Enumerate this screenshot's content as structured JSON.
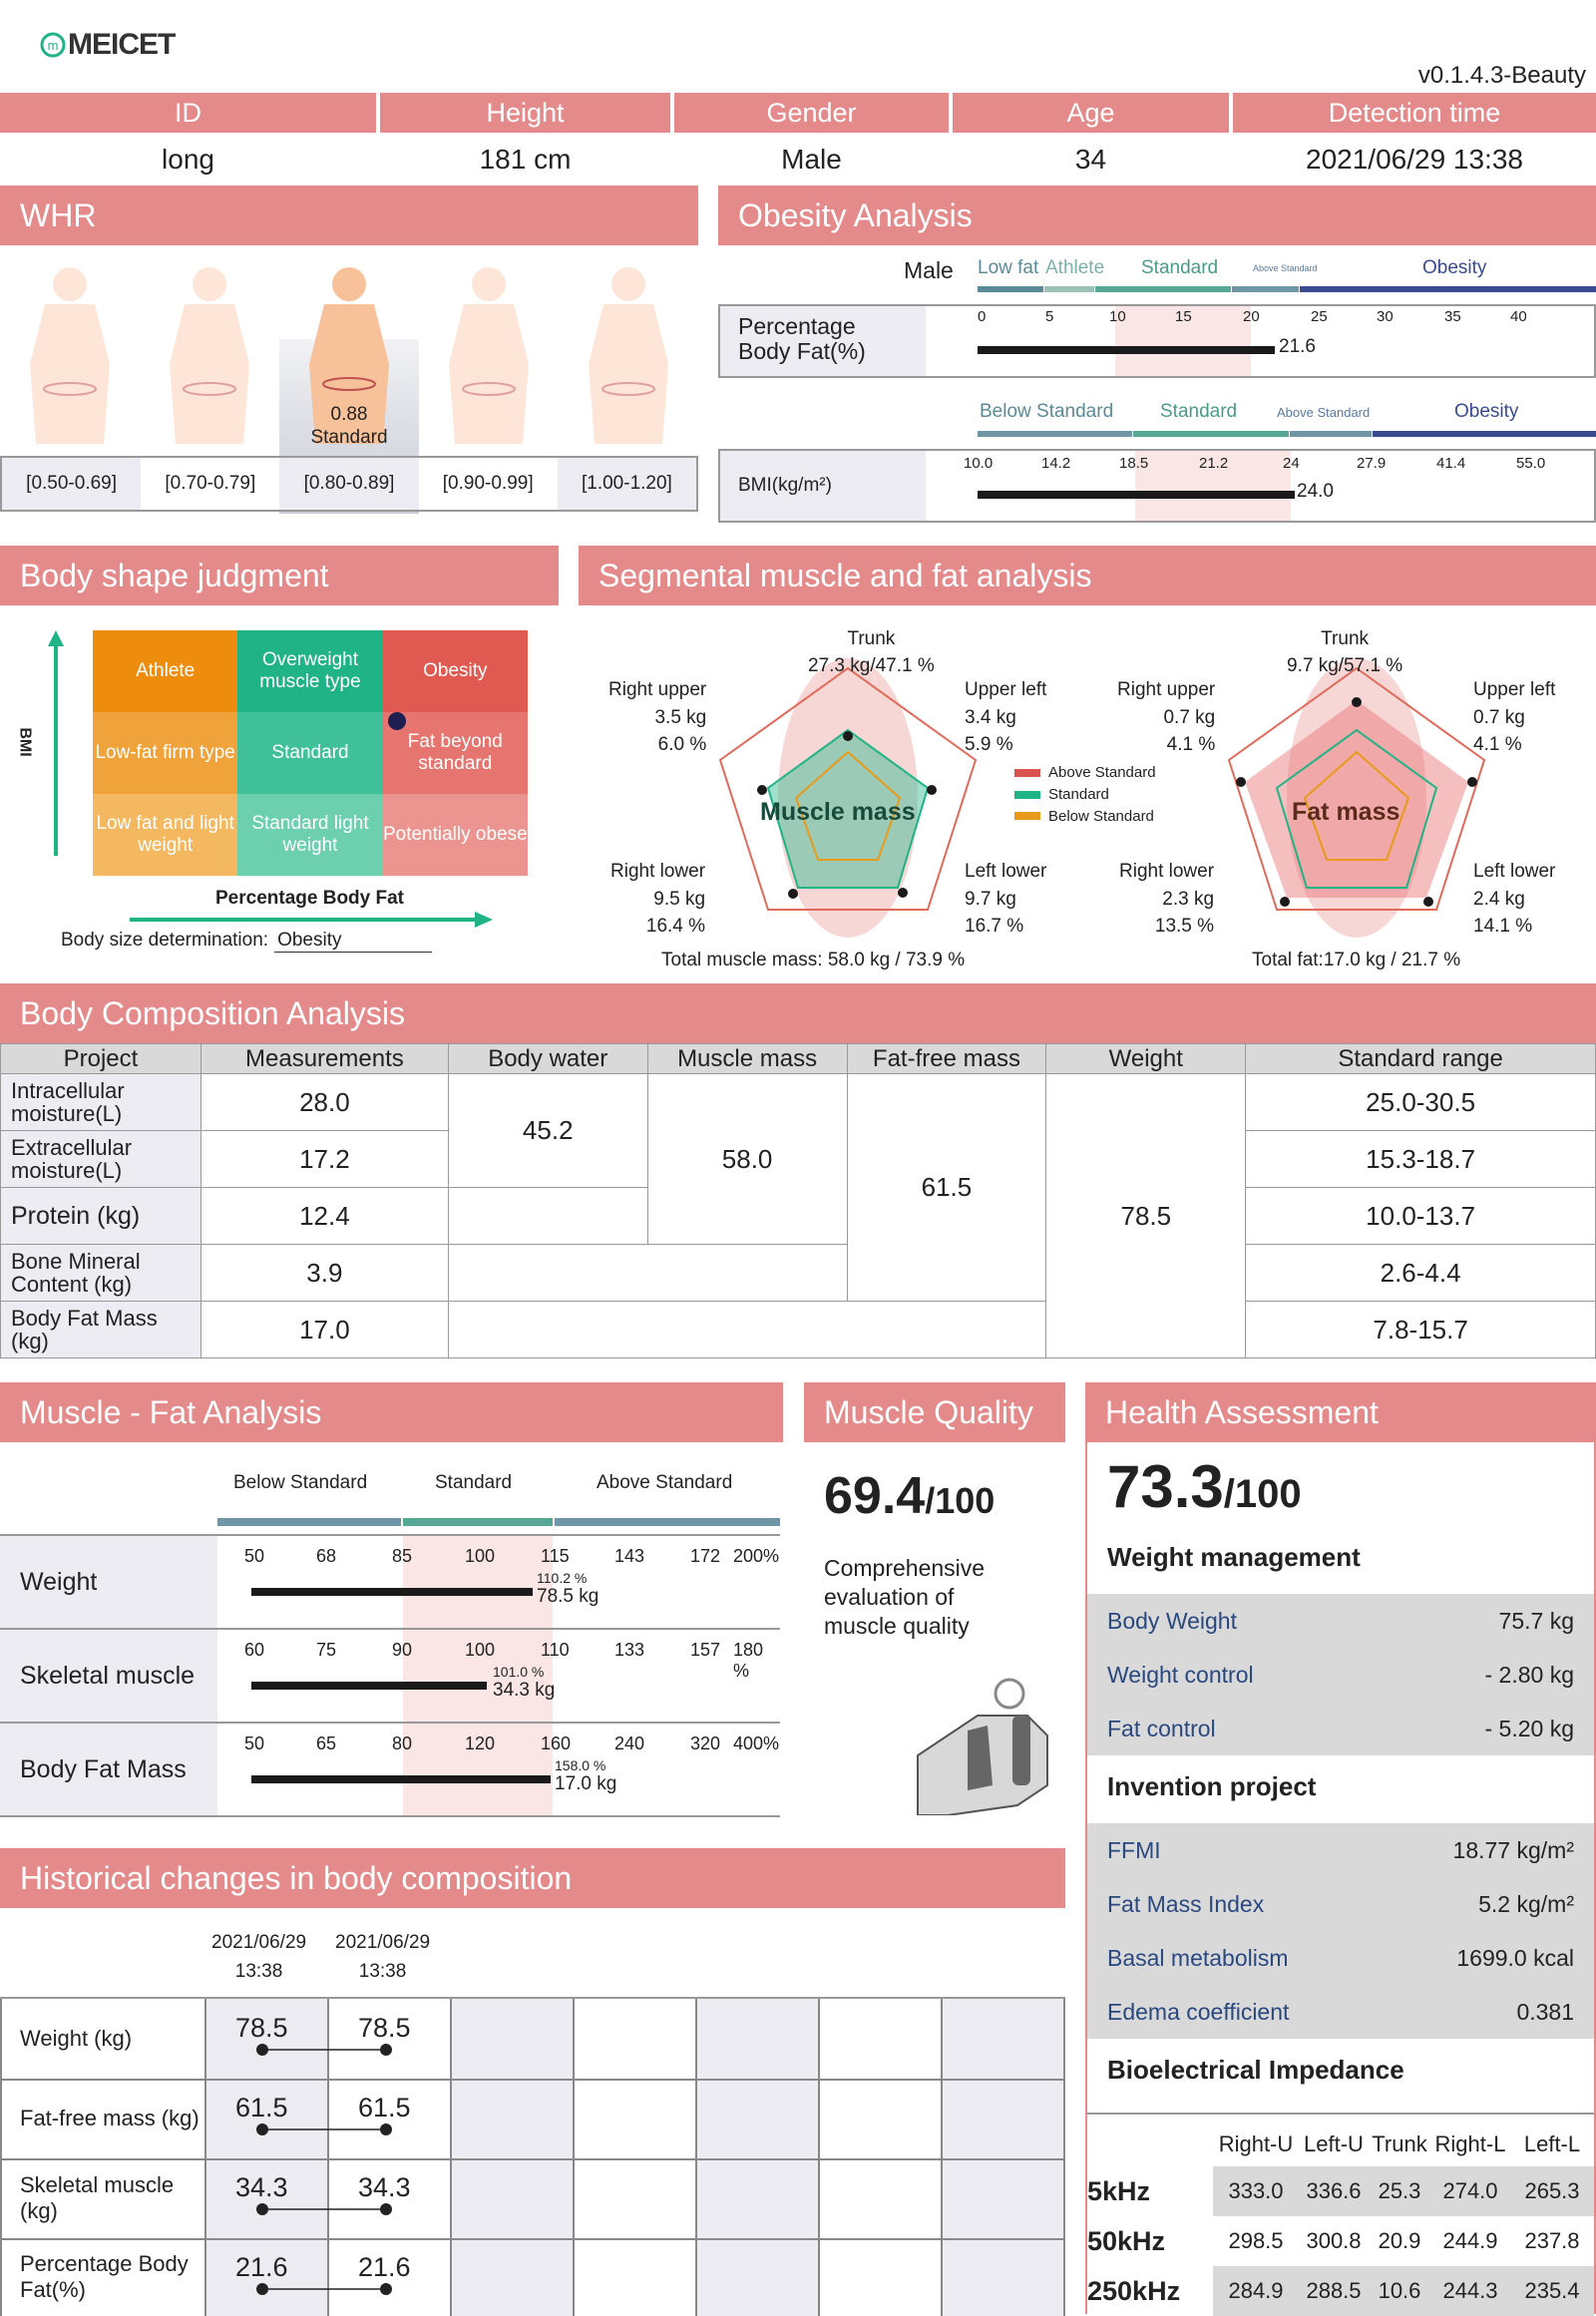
{
  "brand": "MEICET",
  "version": "v0.1.4.3-Beauty",
  "info": {
    "headers": [
      "ID",
      "Height",
      "Gender",
      "Age",
      "Detection time"
    ],
    "values": [
      "long",
      "181 cm",
      "Male",
      "34",
      "2021/06/29 13:38"
    ]
  },
  "whr": {
    "title": "WHR",
    "value": "0.88",
    "status": "Standard",
    "ranges": [
      "[0.50-0.69]",
      "[0.70-0.79]",
      "[0.80-0.89]",
      "[0.90-0.99]",
      "[1.00-1.20]"
    ],
    "selected": 2
  },
  "obesity": {
    "title": "Obesity Analysis",
    "gender": "Male",
    "pbf": {
      "label": "Percentage Body Fat(%)",
      "cats": [
        "Low fat",
        "Athlete",
        "Standard",
        "Above Standard",
        "Obesity"
      ],
      "ticks": [
        "0",
        "5",
        "10",
        "15",
        "20",
        "25",
        "30",
        "35",
        "40"
      ],
      "value": "21.6"
    },
    "bmi": {
      "label": "BMI(kg/m²)",
      "cats": [
        "Below Standard",
        "Standard",
        "Above Standard",
        "Obesity"
      ],
      "ticks": [
        "10.0",
        "14.2",
        "18.5",
        "21.2",
        "24",
        "27.9",
        "41.4",
        "55.0"
      ],
      "value": "24.0"
    }
  },
  "body_shape": {
    "title": "Body shape judgment",
    "y_label": "BMI",
    "x_label": "Percentage Body Fat",
    "cells": [
      "Athlete",
      "Overweight muscle type",
      "Obesity",
      "Low-fat firm type",
      "Standard",
      "Fat beyond standard",
      "Low fat and light weight",
      "Standard light weight",
      "Potentially obese"
    ],
    "det_label": "Body size determination:",
    "det_value": "Obesity"
  },
  "segmental": {
    "title": "Segmental muscle and fat analysis",
    "muscle": {
      "center": "Muscle mass",
      "trunk": [
        "Trunk",
        "27.3 kg/47.1 %"
      ],
      "ru": [
        "Right upper",
        "3.5 kg",
        "6.0 %"
      ],
      "lu": [
        "Upper left",
        "3.4 kg",
        "5.9 %"
      ],
      "rl": [
        "Right lower",
        "9.5 kg",
        "16.4 %"
      ],
      "ll": [
        "Left lower",
        "9.7 kg",
        "16.7 %"
      ],
      "total": "Total muscle mass:  58.0 kg / 73.9 %"
    },
    "fat": {
      "center": "Fat mass",
      "trunk": [
        "Trunk",
        "9.7 kg/57.1 %"
      ],
      "ru": [
        "Right upper",
        "0.7 kg",
        "4.1 %"
      ],
      "lu": [
        "Upper left",
        "0.7 kg",
        "4.1 %"
      ],
      "rl": [
        "Right lower",
        "2.3 kg",
        "13.5 %"
      ],
      "ll": [
        "Left lower",
        "2.4 kg",
        "14.1 %"
      ],
      "total": "Total fat:17.0 kg / 21.7 %"
    },
    "legend": [
      "Above Standard",
      "Standard",
      "Below Standard"
    ],
    "legend_colors": [
      "#d9534f",
      "#1fb385",
      "#e89a1a"
    ]
  },
  "bca": {
    "title": "Body Composition Analysis",
    "headers": [
      "Project",
      "Measurements",
      "Body water",
      "Muscle mass",
      "Fat-free mass",
      "Weight",
      "Standard range"
    ],
    "rows": [
      [
        "Intracellular moisture(L)",
        "28.0",
        "25.0-30.5"
      ],
      [
        "Extracellular moisture(L)",
        "17.2",
        "15.3-18.7"
      ],
      [
        "Protein (kg)",
        "12.4",
        "10.0-13.7"
      ],
      [
        "Bone Mineral Content (kg)",
        "3.9",
        "2.6-4.4"
      ],
      [
        "Body Fat Mass (kg)",
        "17.0",
        "7.8-15.7"
      ]
    ],
    "body_water": "45.2",
    "muscle_mass": "58.0",
    "ffm": "61.5",
    "weight": "78.5"
  },
  "mfa": {
    "title": "Muscle - Fat Analysis",
    "cats": [
      "Below Standard",
      "Standard",
      "Above Standard"
    ],
    "rows": [
      {
        "label": "Weight",
        "ticks": [
          "50",
          "68",
          "85",
          "100",
          "115",
          "143",
          "172",
          "200%"
        ],
        "pct": "110.2 %",
        "val": "78.5 kg",
        "fill": 0.53
      },
      {
        "label": "Skeletal muscle",
        "ticks": [
          "60",
          "75",
          "90",
          "100",
          "110",
          "133",
          "157",
          "180 %"
        ],
        "pct": "101.0 %",
        "val": "34.3 kg",
        "fill": 0.43
      },
      {
        "label": "Body Fat Mass",
        "ticks": [
          "50",
          "65",
          "80",
          "120",
          "160",
          "240",
          "320",
          "400%"
        ],
        "pct": "158.0 %",
        "val": "17.0 kg",
        "fill": 0.57
      }
    ]
  },
  "mq": {
    "title": "Muscle Quality",
    "score": "69.4",
    "max": "/100",
    "desc": "Comprehensive evaluation of muscle quality"
  },
  "health": {
    "title": "Health Assessment",
    "score": "73.3",
    "max": "/100",
    "wm_title": "Weight management",
    "wm": [
      [
        "Body Weight",
        "75.7 kg"
      ],
      [
        "Weight control",
        "- 2.80 kg"
      ],
      [
        "Fat control",
        "- 5.20 kg"
      ]
    ],
    "inv_title": "Invention project",
    "inv": [
      [
        "FFMI",
        "18.77 kg/m²"
      ],
      [
        "Fat Mass Index",
        "5.2 kg/m²"
      ],
      [
        "Basal metabolism",
        "1699.0 kcal"
      ],
      [
        "Edema coefficient",
        "0.381"
      ]
    ],
    "bi_title": "Bioelectrical Impedance",
    "bi_headers": [
      "Right-U",
      "Left-U",
      "Trunk",
      "Right-L",
      "Left-L"
    ],
    "bi_rows": [
      [
        "5kHz",
        "333.0",
        "336.6",
        "25.3",
        "274.0",
        "265.3"
      ],
      [
        "50kHz",
        "298.5",
        "300.8",
        "20.9",
        "244.9",
        "237.8"
      ],
      [
        "250kHz",
        "284.9",
        "288.5",
        "10.6",
        "244.3",
        "235.4"
      ]
    ]
  },
  "history": {
    "title": "Historical changes in body composition",
    "dates": [
      [
        "2021/06/29",
        "13:38"
      ],
      [
        "2021/06/29",
        "13:38"
      ]
    ],
    "rows": [
      [
        "Weight (kg)",
        "78.5",
        "78.5"
      ],
      [
        "Fat-free mass (kg)",
        "61.5",
        "61.5"
      ],
      [
        "Skeletal muscle (kg)",
        "34.3",
        "34.3"
      ],
      [
        "Percentage Body Fat(%)",
        "21.6",
        "21.6"
      ]
    ]
  }
}
